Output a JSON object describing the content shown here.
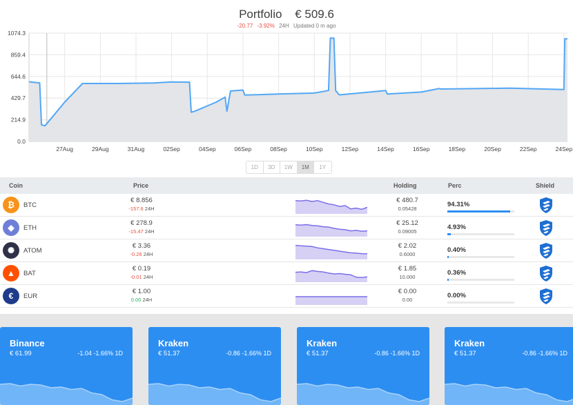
{
  "header": {
    "title": "Portfolio",
    "value": "€ 509.6",
    "change_abs": "-20.77",
    "change_pct": "-3.92%",
    "period": "24H",
    "updated": "Updated 0 m ago"
  },
  "chart_data": {
    "type": "area",
    "y_ticks": [
      "1074.3",
      "859.4",
      "644.6",
      "429.7",
      "214.9",
      "0.0"
    ],
    "x_ticks": [
      "27Aug",
      "29Aug",
      "31Aug",
      "02Sep",
      "04Sep",
      "06Sep",
      "08Sep",
      "10Sep",
      "12Sep",
      "14Sep",
      "16Sep",
      "18Sep",
      "20Sep",
      "22Sep",
      "24Sep"
    ],
    "ylim": [
      0,
      1074.3
    ],
    "x_start_day": 25.0,
    "x_end_day": 55.2,
    "grid": true,
    "color": "#52a7f5",
    "points": [
      [
        25.0,
        592
      ],
      [
        25.6,
        580
      ],
      [
        25.7,
        165
      ],
      [
        25.9,
        155
      ],
      [
        27.0,
        390
      ],
      [
        28.0,
        575
      ],
      [
        30.0,
        575
      ],
      [
        32.0,
        580
      ],
      [
        33.0,
        590
      ],
      [
        34.0,
        588
      ],
      [
        34.1,
        290
      ],
      [
        34.3,
        300
      ],
      [
        35.5,
        390
      ],
      [
        36.0,
        440
      ],
      [
        36.1,
        300
      ],
      [
        36.3,
        500
      ],
      [
        37.0,
        510
      ],
      [
        37.1,
        460
      ],
      [
        39.0,
        470
      ],
      [
        41.0,
        480
      ],
      [
        41.8,
        505
      ],
      [
        41.9,
        1025
      ],
      [
        42.1,
        1025
      ],
      [
        42.2,
        505
      ],
      [
        42.4,
        462
      ],
      [
        45.0,
        505
      ],
      [
        45.1,
        470
      ],
      [
        47.0,
        490
      ],
      [
        48.0,
        525
      ],
      [
        48.1,
        520
      ],
      [
        52.0,
        528
      ],
      [
        55.0,
        515
      ],
      [
        55.05,
        1018
      ],
      [
        55.2,
        1018
      ]
    ]
  },
  "ranges": {
    "items": [
      "1D",
      "3D",
      "1W",
      "1M",
      "1Y"
    ],
    "active": "1M"
  },
  "table": {
    "headers": {
      "coin": "Coin",
      "price": "Price",
      "holding": "Holding",
      "perc": "Perc",
      "shield": "Shield"
    },
    "rows": [
      {
        "symbol": "BTC",
        "icon": "bitcoin-icon",
        "icon_glyph": "₿",
        "icon_color": "#f7931a",
        "price": "€ 8.856",
        "change": "-157.6",
        "change_sign": "neg",
        "period": "24H",
        "holding": "€ 480.7",
        "amount": "0.05428",
        "perc": "94.31%",
        "perc_value": 94.31,
        "spark": [
          0.8,
          0.78,
          0.82,
          0.75,
          0.8,
          0.7,
          0.6,
          0.55,
          0.45,
          0.5,
          0.3,
          0.35,
          0.28,
          0.4
        ]
      },
      {
        "symbol": "ETH",
        "icon": "ethereum-icon",
        "icon_glyph": "◆",
        "icon_color": "#6f7fd8",
        "price": "€ 278.9",
        "change": "-15.47",
        "change_sign": "neg",
        "period": "24H",
        "holding": "€ 25.12",
        "amount": "0.09005",
        "perc": "4.93%",
        "perc_value": 4.93,
        "spark": [
          0.72,
          0.7,
          0.73,
          0.68,
          0.66,
          0.6,
          0.58,
          0.5,
          0.45,
          0.42,
          0.35,
          0.38,
          0.33,
          0.35
        ]
      },
      {
        "symbol": "ATOM",
        "icon": "cosmos-icon",
        "icon_glyph": "✺",
        "icon_color": "#2e3148",
        "price": "€ 3.36",
        "change": "-0.26",
        "change_sign": "neg",
        "period": "24H",
        "holding": "€ 2.02",
        "amount": "0.6000",
        "perc": "0.40%",
        "perc_value": 0.4,
        "spark": [
          0.85,
          0.82,
          0.8,
          0.78,
          0.7,
          0.65,
          0.6,
          0.55,
          0.5,
          0.45,
          0.4,
          0.38,
          0.35,
          0.34
        ]
      },
      {
        "symbol": "BAT",
        "icon": "bat-icon",
        "icon_glyph": "▲",
        "icon_color": "#ff5000",
        "price": "€ 0.19",
        "change": "-0.01",
        "change_sign": "neg",
        "period": "24H",
        "holding": "€ 1.85",
        "amount": "10.000",
        "perc": "0.36%",
        "perc_value": 0.36,
        "spark": [
          0.6,
          0.62,
          0.58,
          0.7,
          0.65,
          0.62,
          0.55,
          0.5,
          0.52,
          0.48,
          0.45,
          0.3,
          0.28,
          0.32
        ]
      },
      {
        "symbol": "EUR",
        "icon": "euro-icon",
        "icon_glyph": "€",
        "icon_color": "#1e3c8c",
        "price": "€ 1.00",
        "change": "0.00",
        "change_sign": "pos",
        "period": "24H",
        "holding": "€ 0.00",
        "amount": "0.00",
        "perc": "0.00%",
        "perc_value": 0,
        "spark": [
          0.5,
          0.5,
          0.5,
          0.5,
          0.5,
          0.5,
          0.5,
          0.5,
          0.5,
          0.5,
          0.5,
          0.5,
          0.5,
          0.5
        ]
      }
    ]
  },
  "exchanges": [
    {
      "name": "Binance",
      "value": "€ 61.99",
      "change": "-1.04",
      "change_pct": "-1.66%",
      "period": "1D",
      "spark": [
        0.6,
        0.62,
        0.55,
        0.6,
        0.58,
        0.5,
        0.52,
        0.45,
        0.48,
        0.35,
        0.3,
        0.15,
        0.1,
        0.2
      ]
    },
    {
      "name": "Kraken",
      "value": "€ 51.37",
      "change": "-0.86",
      "change_pct": "-1.66%",
      "period": "1D",
      "spark": [
        0.6,
        0.62,
        0.55,
        0.6,
        0.58,
        0.5,
        0.52,
        0.45,
        0.48,
        0.35,
        0.3,
        0.15,
        0.1,
        0.2
      ]
    },
    {
      "name": "Kraken",
      "value": "€ 51.37",
      "change": "-0.86",
      "change_pct": "-1.66%",
      "period": "1D",
      "spark": [
        0.6,
        0.62,
        0.55,
        0.6,
        0.58,
        0.5,
        0.52,
        0.45,
        0.48,
        0.35,
        0.3,
        0.15,
        0.1,
        0.2
      ]
    },
    {
      "name": "Kraken",
      "value": "€ 51.37",
      "change": "-0.86",
      "change_pct": "-1.66%",
      "period": "1D",
      "spark": [
        0.6,
        0.62,
        0.55,
        0.6,
        0.58,
        0.5,
        0.52,
        0.45,
        0.48,
        0.35,
        0.3,
        0.15,
        0.1,
        0.2
      ]
    }
  ]
}
